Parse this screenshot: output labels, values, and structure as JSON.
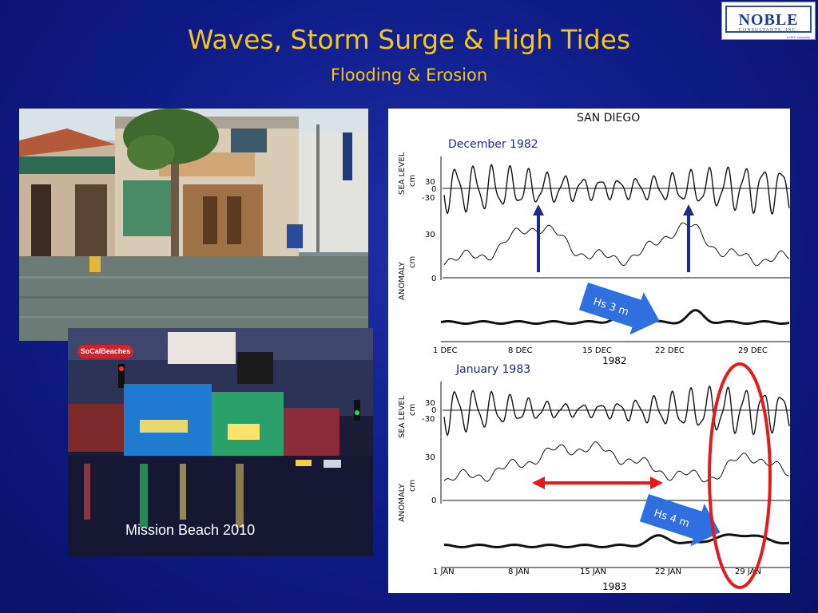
{
  "slide": {
    "title": "Waves, Storm Surge & High Tides",
    "subtitle": "Flooding & Erosion",
    "logo": {
      "name": "NOBLE",
      "sub": "CONSULTANTS, INC.",
      "tag": "a GEC company"
    },
    "photo2_caption": "Mission Beach 2010",
    "photo2_badge": "SoCalBeaches"
  },
  "chart": {
    "station": "SAN DIEGO",
    "panel1_label": "December 1982",
    "panel2_label": "January 1983",
    "sea_level_axis": "SEA LEVEL",
    "anomaly_axis": "ANOMALY",
    "unit": "cm",
    "ticks_sea": [
      "30",
      "0",
      "-30"
    ],
    "ticks_anom": [
      "30",
      "0"
    ],
    "dec_ticks": [
      "1 DEC",
      "8 DEC",
      "15 DEC",
      "22 DEC",
      "29 DEC"
    ],
    "jan_ticks": [
      "1 JAN",
      "8 JAN",
      "15 JAN",
      "22 JAN",
      "29 JAN"
    ],
    "year1": "1982",
    "year2": "1983",
    "hs1": "Hs 3 m",
    "hs2": "Hs 4 m",
    "colors": {
      "annotation_blue": "#1f2a8f",
      "arrow_blue": "#2f6fe0",
      "highlight_red": "#e31b1b"
    }
  }
}
